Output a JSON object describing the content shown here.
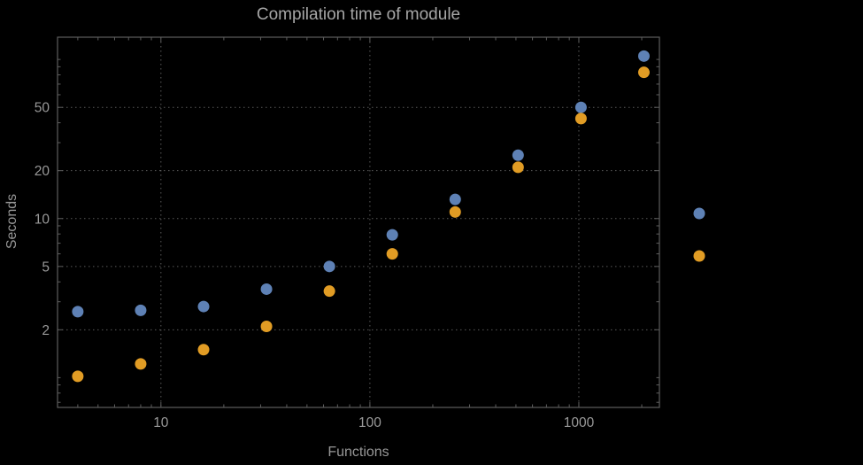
{
  "colors": {
    "background": "#000000",
    "frame": "#5e5e5e",
    "grid": "#5a5a5a",
    "text": "#999999",
    "title": "#a6a6a6",
    "series1": "#5e81b5",
    "series2": "#e19c24"
  },
  "chart_data": {
    "type": "scatter",
    "title": "Compilation time of module",
    "xlabel": "Functions",
    "ylabel": "Seconds",
    "xscale": "log",
    "yscale": "log",
    "xlim": [
      3.2,
      2430
    ],
    "ylim": [
      0.65,
      138
    ],
    "x_ticks": [
      10,
      100,
      1000
    ],
    "x_minor_ticks": [
      4,
      5,
      6,
      7,
      8,
      9,
      20,
      30,
      40,
      50,
      60,
      70,
      80,
      90,
      200,
      300,
      400,
      500,
      600,
      700,
      800,
      900,
      2000
    ],
    "y_ticks": [
      2,
      5,
      10,
      20,
      50
    ],
    "y_minor_ticks": [
      0.7,
      0.8,
      0.9,
      1,
      3,
      4,
      6,
      7,
      8,
      9,
      30,
      40,
      60,
      70,
      80,
      90,
      100
    ],
    "grid": "dotted lines at major ticks",
    "legend_position": "right",
    "x": [
      4,
      8,
      16,
      32,
      64,
      128,
      256,
      512,
      1024,
      2048
    ],
    "series": [
      {
        "name": "series-1",
        "color": "#5e81b5",
        "values": [
          2.6,
          2.65,
          2.8,
          3.6,
          5.0,
          7.9,
          13.2,
          25,
          50,
          105
        ]
      },
      {
        "name": "series-2",
        "color": "#e19c24",
        "values": [
          1.02,
          1.22,
          1.5,
          2.1,
          3.5,
          6.0,
          11.0,
          21.0,
          42.5,
          83
        ]
      }
    ],
    "legend_entries": [
      {
        "series": "series-1",
        "label": ""
      },
      {
        "series": "series-2",
        "label": ""
      }
    ]
  }
}
